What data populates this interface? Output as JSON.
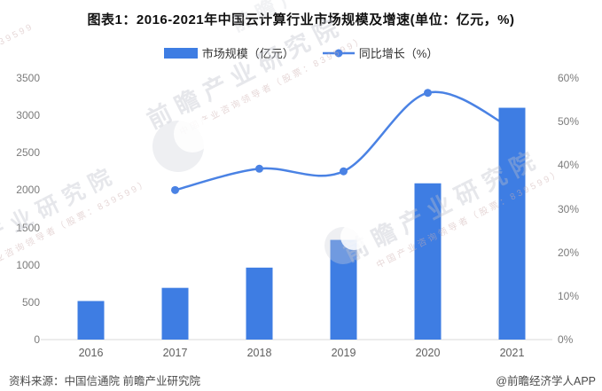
{
  "title": "图表1：2016-2021年中国云计算行业市场规模及增速(单位：亿元，%)",
  "legend": {
    "items": [
      {
        "label": "市场规模（亿元）",
        "marker": "bar-swatch"
      },
      {
        "label": "同比增长（%）",
        "marker": "line-dot"
      }
    ]
  },
  "chart_data": {
    "type": "bar",
    "title": "图表1：2016-2021年中国云计算行业市场规模及增速(单位：亿元，%)",
    "categories": [
      "2016",
      "2017",
      "2018",
      "2019",
      "2020",
      "2021"
    ],
    "series": [
      {
        "name": "市场规模（亿元）",
        "type": "bar",
        "yaxis": "left",
        "values": [
          516,
          692,
          963,
          1334,
          2091,
          3102
        ]
      },
      {
        "name": "同比增长（%）",
        "type": "line",
        "yaxis": "right",
        "values": [
          null,
          34.3,
          39.2,
          38.6,
          56.6,
          48.4
        ]
      }
    ],
    "left_axis": {
      "min": 0,
      "max": 3500,
      "step": 500,
      "tick_labels": [
        "0",
        "500",
        "1000",
        "1500",
        "2000",
        "2500",
        "3000",
        "3500"
      ]
    },
    "right_axis": {
      "min": 0,
      "max": 60,
      "step": 10,
      "unit": "%",
      "tick_labels": [
        "0%",
        "10%",
        "20%",
        "30%",
        "40%",
        "50%",
        "60%"
      ]
    },
    "grid": false,
    "legend_position": "top",
    "xlabel": "",
    "ylabel": ""
  },
  "watermark": {
    "brand": "前瞻产业研究院",
    "tagline": "中国产业咨询领导者（股票：839599）",
    "corner_fragment": "瞻·839599"
  },
  "footer": {
    "source": "资料来源：中国信通院 前瞻产业研究院",
    "credit": "@前瞻经济学人APP"
  },
  "colors": {
    "bar": "#3E7DE3",
    "line": "#4A82E4",
    "axis_line": "#d9d9d9",
    "axis_text": "#7b7b7b",
    "title_text": "#111111"
  }
}
